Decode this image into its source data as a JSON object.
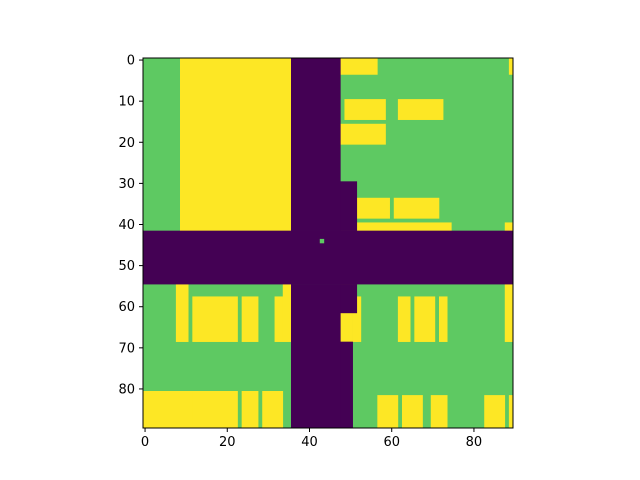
{
  "chart_data": {
    "type": "heatmap",
    "title": "",
    "xlabel": "",
    "ylabel": "",
    "xlim": [
      -0.5,
      89.5
    ],
    "ylim": [
      89.5,
      -0.5
    ],
    "x_ticks": [
      0,
      20,
      40,
      60,
      80
    ],
    "y_ticks": [
      0,
      10,
      20,
      30,
      40,
      50,
      60,
      70,
      80
    ],
    "grid": false,
    "colormap": "viridis",
    "values_legend": {
      "0": "#440154",
      "1": "#5ec962",
      "2": "#fde725"
    },
    "grid_shape": [
      90,
      90
    ],
    "cells": {
      "background_value": 1,
      "regions_value_2": [
        [
          9,
          0,
          36,
          42
        ],
        [
          48,
          0,
          57,
          4
        ],
        [
          89,
          0,
          90,
          4
        ],
        [
          49,
          10,
          59,
          15
        ],
        [
          62,
          10,
          73,
          15
        ],
        [
          48,
          16,
          59,
          21
        ],
        [
          49,
          34,
          60,
          39
        ],
        [
          61,
          34,
          72,
          39
        ],
        [
          48,
          40,
          75,
          42
        ],
        [
          88,
          40,
          90,
          42
        ],
        [
          8,
          55,
          11,
          69
        ],
        [
          12,
          58,
          18,
          69
        ],
        [
          18,
          58,
          23,
          69
        ],
        [
          24,
          58,
          28,
          69
        ],
        [
          32,
          58,
          34,
          69
        ],
        [
          34,
          55,
          36,
          69
        ],
        [
          48,
          55,
          51,
          69
        ],
        [
          51,
          58,
          53,
          69
        ],
        [
          62,
          58,
          65,
          69
        ],
        [
          66,
          58,
          71,
          69
        ],
        [
          72,
          58,
          74,
          69
        ],
        [
          88,
          55,
          90,
          69
        ],
        [
          0,
          81,
          12,
          90
        ],
        [
          12,
          81,
          18,
          90
        ],
        [
          18,
          81,
          23,
          90
        ],
        [
          24,
          81,
          28,
          90
        ],
        [
          29,
          81,
          34,
          90
        ],
        [
          42,
          82,
          46,
          90
        ],
        [
          57,
          82,
          62,
          90
        ],
        [
          63,
          82,
          68,
          90
        ],
        [
          70,
          82,
          74,
          90
        ],
        [
          83,
          82,
          88,
          90
        ],
        [
          89,
          82,
          90,
          90
        ]
      ],
      "regions_value_0": [
        [
          36,
          0,
          48,
          42
        ],
        [
          0,
          42,
          90,
          55
        ],
        [
          36,
          55,
          48,
          90
        ],
        [
          48,
          30,
          52,
          42
        ],
        [
          48,
          55,
          52,
          62
        ],
        [
          48,
          69,
          51,
          90
        ]
      ],
      "regions_value_1": [
        [
          43,
          44,
          44,
          45
        ]
      ]
    }
  }
}
